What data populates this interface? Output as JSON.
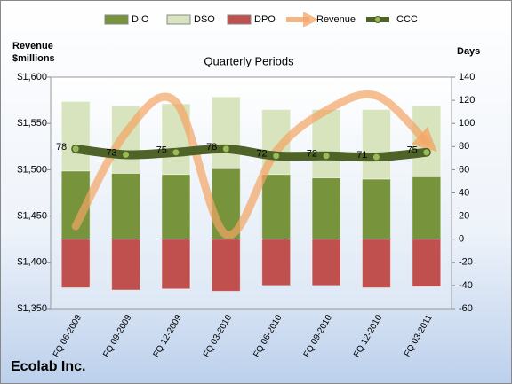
{
  "chart_data": {
    "type": "bar",
    "title": "Quarterly Periods",
    "company": "Ecolab Inc.",
    "y_label": [
      "Revenue",
      "$millions"
    ],
    "y2_label": "Days",
    "categories": [
      "FQ 06-2009",
      "FQ 09-2009",
      "FQ 12-2009",
      "FQ 03-2010",
      "FQ 06-2010",
      "FQ 09-2010",
      "FQ 12-2010",
      "FQ 03-2011"
    ],
    "series": [
      {
        "name": "DIO",
        "type": "bar",
        "axis": "y2",
        "color": "#77933c",
        "values": [
          59,
          57,
          56,
          61,
          56,
          53,
          52,
          54
        ]
      },
      {
        "name": "DSO",
        "type": "bar",
        "axis": "y2",
        "color": "#d7e4bd",
        "values": [
          60,
          58,
          61,
          62,
          56,
          59,
          60,
          61
        ]
      },
      {
        "name": "DPO",
        "type": "bar",
        "axis": "y2",
        "color": "#c0504d",
        "values": [
          -42,
          -44,
          -43,
          -45,
          -40,
          -40,
          -42,
          -41
        ]
      },
      {
        "name": "Revenue",
        "type": "line",
        "axis": "y",
        "color": "#f4a464",
        "values": [
          1439,
          1540,
          1573,
          1430,
          1520,
          1564,
          1580,
          1530
        ]
      },
      {
        "name": "CCC",
        "type": "line",
        "axis": "y2",
        "color": "#4f6228",
        "values": [
          78,
          73,
          75,
          78,
          72,
          72,
          71,
          75
        ]
      }
    ],
    "ylim": [
      1350,
      1600
    ],
    "yticks": [
      {
        "value": 1350,
        "label": "$1,350"
      },
      {
        "value": 1400,
        "label": "$1,400"
      },
      {
        "value": 1450,
        "label": "$1,450"
      },
      {
        "value": 1500,
        "label": "$1,500"
      },
      {
        "value": 1550,
        "label": "$1,550"
      },
      {
        "value": 1600,
        "label": "$1,600"
      }
    ],
    "y2lim": [
      -60,
      140
    ],
    "y2ticks": [
      -60,
      -40,
      -20,
      0,
      20,
      40,
      60,
      80,
      100,
      120,
      140
    ],
    "grid": true
  }
}
